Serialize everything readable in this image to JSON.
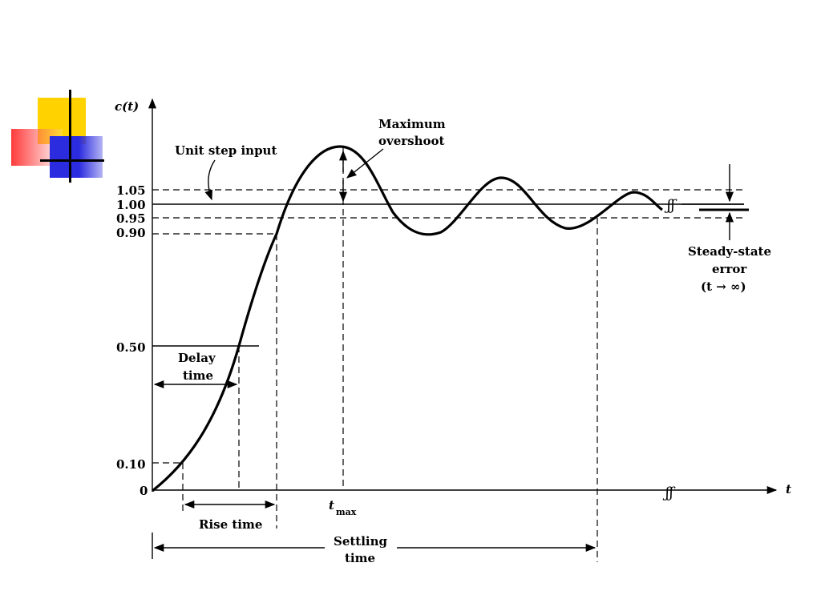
{
  "deco_colors": {
    "yellow": "#FFD200",
    "red": "#FF3B3B",
    "blue": "#2B2BE0",
    "ink": "#000000"
  },
  "axes": {
    "y_name": "c(t)",
    "x_name": "t"
  },
  "y_ticks": [
    {
      "label": "1.05",
      "value": 1.05
    },
    {
      "label": "1.00",
      "value": 1.0
    },
    {
      "label": "0.95",
      "value": 0.95
    },
    {
      "label": "0.90",
      "value": 0.9
    },
    {
      "label": "0.50",
      "value": 0.5
    },
    {
      "label": "0.10",
      "value": 0.1
    },
    {
      "label": "0",
      "value": 0
    }
  ],
  "labels": {
    "unit_step_input": "Unit step input",
    "max_overshoot_1": "Maximum",
    "max_overshoot_2": "overshoot",
    "delay_time_1": "Delay",
    "delay_time_2": "time",
    "rise_time": "Rise time",
    "settling_time_1": "Settling",
    "settling_time_2": "time",
    "t_max_t": "t",
    "t_max_sub": "max",
    "sse_1": "Steady-state",
    "sse_2": "error",
    "sse_3": "(t → ∞)"
  }
}
